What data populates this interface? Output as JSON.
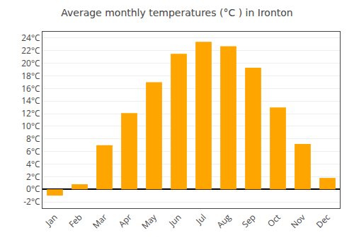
{
  "chart_data": {
    "type": "bar",
    "title": "Average monthly temperatures (°C ) in Ironton",
    "categories": [
      "Jan",
      "Feb",
      "Mar",
      "Apr",
      "May",
      "Jun",
      "Jul",
      "Aug",
      "Sep",
      "Oct",
      "Nov",
      "Dec"
    ],
    "values": [
      -1.0,
      0.8,
      7.0,
      12.1,
      17.0,
      21.5,
      23.4,
      22.7,
      19.3,
      13.0,
      7.2,
      1.8
    ],
    "color": "#FFA500",
    "ylim": [
      -3,
      25
    ],
    "yticks": [
      {
        "value": -2,
        "label": "-2°C"
      },
      {
        "value": 0,
        "label": "0°C"
      },
      {
        "value": 2,
        "label": "2°C"
      },
      {
        "value": 4,
        "label": "4°C"
      },
      {
        "value": 6,
        "label": "6°C"
      },
      {
        "value": 8,
        "label": "8°C"
      },
      {
        "value": 10,
        "label": "10°C"
      },
      {
        "value": 12,
        "label": "12°C"
      },
      {
        "value": 14,
        "label": "14°C"
      },
      {
        "value": 16,
        "label": "16°C"
      },
      {
        "value": 18,
        "label": "18°C"
      },
      {
        "value": 20,
        "label": "20°C"
      },
      {
        "value": 22,
        "label": "22°C"
      },
      {
        "value": 24,
        "label": "24°C"
      }
    ],
    "grid": true
  }
}
